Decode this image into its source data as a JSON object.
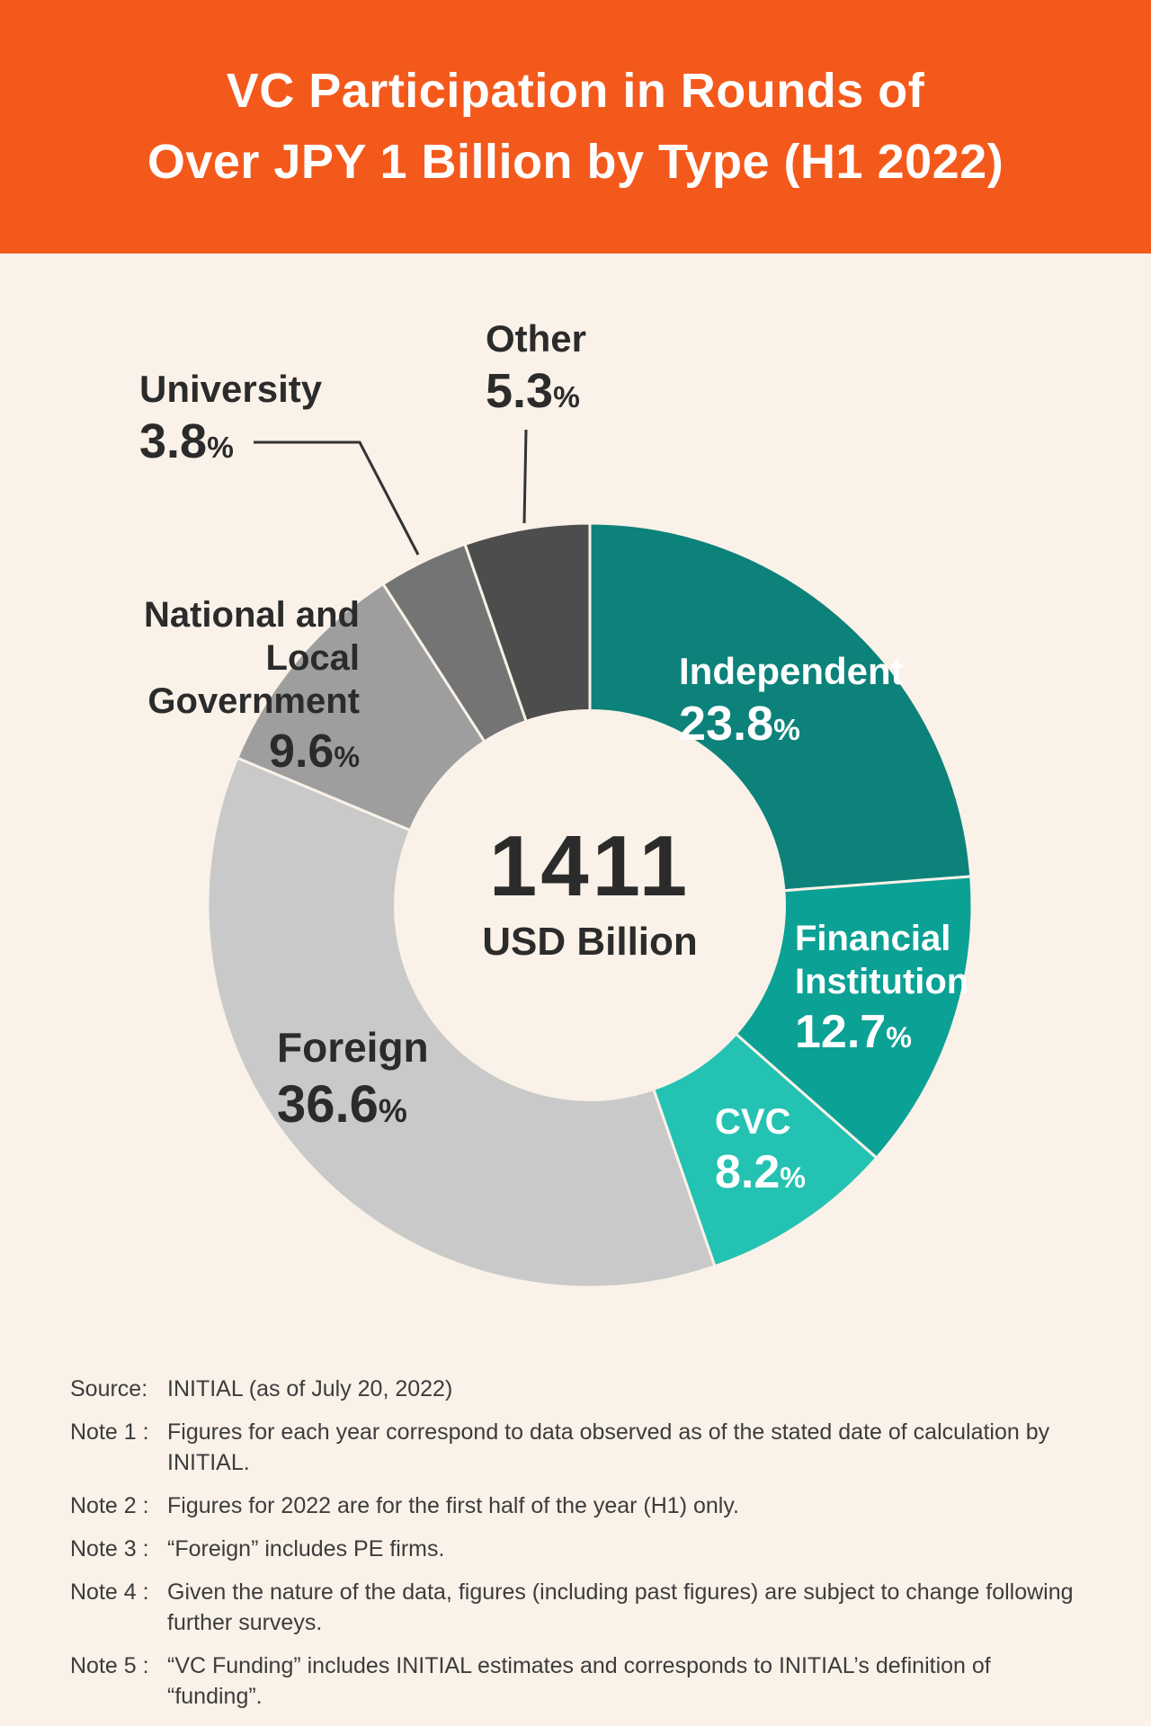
{
  "header": {
    "title_line1": "VC Participation in Rounds of",
    "title_line2": "Over JPY 1 Billion by Type (H1 2022)"
  },
  "chart_data": {
    "type": "pie",
    "subtype": "donut",
    "title": "VC Participation in Rounds of Over JPY 1 Billion by Type (H1 2022)",
    "direction": "clockwise",
    "start_angle_deg": 0,
    "center_value": "1411",
    "center_unit": "USD Billion",
    "percent_sign": "%",
    "legend_position": "none",
    "slices": [
      {
        "label": "Independent",
        "value": 23.8,
        "pct": "23.8",
        "color": "#0C827A",
        "text_color": "#FFFFFF"
      },
      {
        "label": "Financial Institution",
        "value": 12.7,
        "pct": "12.7",
        "color": "#0BA195",
        "text_color": "#FFFFFF"
      },
      {
        "label": "CVC",
        "value": 8.2,
        "pct": "8.2",
        "color": "#24C2B2",
        "text_color": "#FFFFFF"
      },
      {
        "label": "Foreign",
        "value": 36.6,
        "pct": "36.6",
        "color": "#C9C9C9",
        "text_color": "#2B2B2B"
      },
      {
        "label": "National and Local Government",
        "value": 9.6,
        "pct": "9.6",
        "color": "#9E9E9E",
        "text_color": "#2B2B2B"
      },
      {
        "label": "University",
        "value": 3.8,
        "pct": "3.8",
        "color": "#747474",
        "text_color": "#2B2B2B"
      },
      {
        "label": "Other",
        "value": 5.3,
        "pct": "5.3",
        "color": "#4D4D4D",
        "text_color": "#2B2B2B"
      }
    ]
  },
  "notes": [
    {
      "label": "Source:",
      "text": "INITIAL (as of July 20, 2022)"
    },
    {
      "label": "Note 1 :",
      "text": "Figures for each year correspond to data observed as of the stated date of calculation by INITIAL."
    },
    {
      "label": "Note 2 :",
      "text": "Figures for 2022 are for the first half of the year (H1) only."
    },
    {
      "label": "Note 3 :",
      "text": "“Foreign” includes PE firms."
    },
    {
      "label": "Note 4 :",
      "text": "Given the nature of the data, figures (including past figures) are subject to change following further surveys."
    },
    {
      "label": "Note 5 :",
      "text": "“VC Funding” includes INITIAL estimates and corresponds to INITIAL’s definition of “funding”."
    }
  ],
  "colors": {
    "header_bg": "#F4591C",
    "header_text": "#FFFFFF",
    "page_bg": "#FAF1E8",
    "label_dark": "#2B2B2B",
    "label_light": "#FFFFFF",
    "note_text": "#3C3C3C",
    "leader_line": "#333333"
  }
}
